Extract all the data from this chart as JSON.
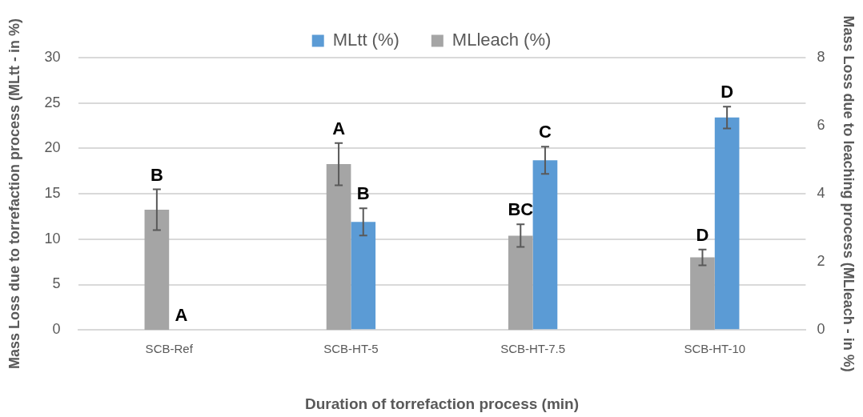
{
  "chart_data": {
    "type": "bar",
    "xlabel": "Duration of torrefaction process (min)",
    "ylabel": "Mass Loss due to torrefaction process (MLtt - in %)",
    "y2label": "Mass Loss due to leaching process (MLleach - in %)",
    "categories": [
      "SCB-Ref",
      "SCB-HT-5",
      "SCB-HT-7.5",
      "SCB-HT-10"
    ],
    "series": [
      {
        "name": "MLleach (%)",
        "color": "#a5a5a5",
        "axis": "y2",
        "values": [
          3.53,
          4.87,
          2.77,
          2.13
        ],
        "errors": [
          0.6,
          0.62,
          0.33,
          0.23
        ]
      },
      {
        "name": "MLtt (%)",
        "color": "#5b9bd5",
        "values": [
          0,
          11.9,
          18.7,
          23.4
        ],
        "errors": [
          null,
          1.5,
          1.5,
          1.2
        ]
      }
    ],
    "ylim": [
      0,
      30
    ],
    "yticks": [
      0,
      5,
      10,
      15,
      20,
      25,
      30
    ],
    "y2lim": [
      0,
      8
    ],
    "y2ticks": [
      0,
      2,
      4,
      6,
      8
    ],
    "annotations": [
      "B",
      "A",
      "A",
      "B",
      "BC",
      "C",
      "D",
      "D"
    ],
    "grid": "y",
    "legend": "top"
  }
}
